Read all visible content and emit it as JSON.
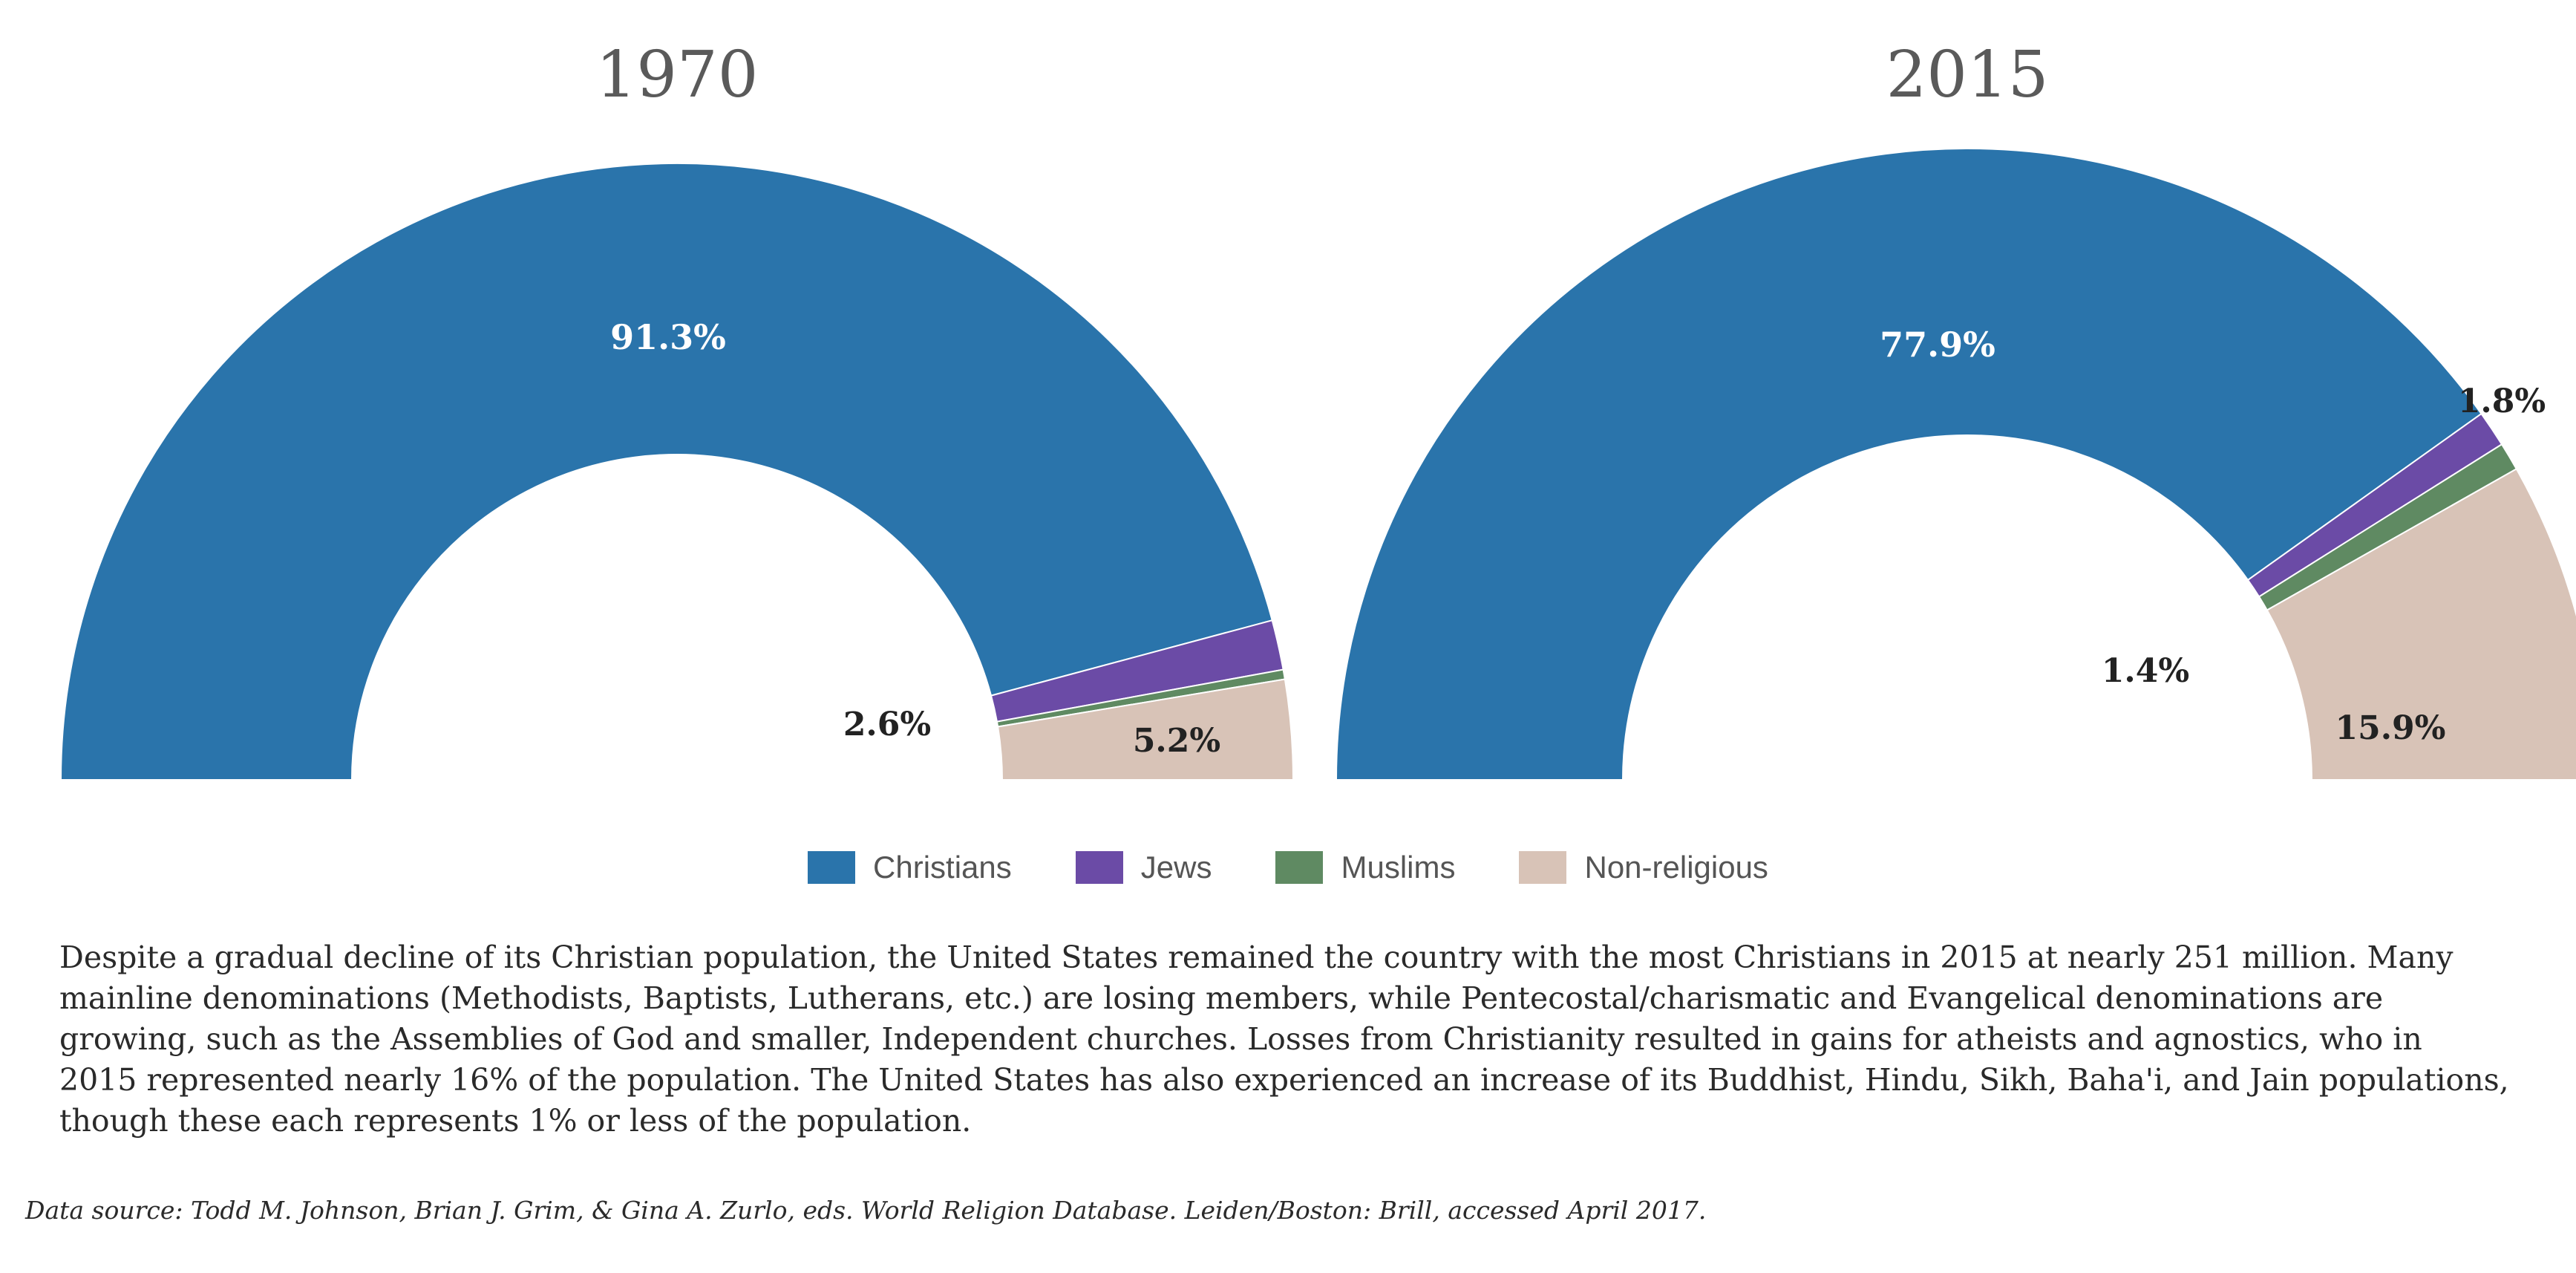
{
  "chart_data": [
    {
      "type": "pie",
      "variant": "half-donut",
      "title": "1970",
      "categories": [
        "Christians",
        "Jews",
        "Muslims",
        "Non-religious"
      ],
      "values": [
        91.3,
        2.6,
        0.5,
        5.2
      ],
      "labels": [
        "91.3%",
        "2.6%",
        "",
        "5.2%"
      ],
      "colors": [
        "#2a74ab",
        "#6b4ba6",
        "#5f8a62",
        "#d8c3b7"
      ]
    },
    {
      "type": "pie",
      "variant": "half-donut",
      "title": "2015",
      "categories": [
        "Christians",
        "Jews",
        "Muslims",
        "Non-religious"
      ],
      "values": [
        77.9,
        1.8,
        1.4,
        15.9
      ],
      "labels": [
        "77.9%",
        "1.8%",
        "1.4%",
        "15.9%"
      ],
      "colors": [
        "#2a74ab",
        "#6b4ba6",
        "#5f8a62",
        "#d8c3b7"
      ]
    }
  ],
  "legend": [
    {
      "label": "Christians",
      "color": "#2a74ab"
    },
    {
      "label": "Jews",
      "color": "#6b4ba6"
    },
    {
      "label": "Muslims",
      "color": "#5f8a62"
    },
    {
      "label": "Non-religious",
      "color": "#d8c3b7"
    }
  ],
  "description": "Despite a gradual decline of its Christian population, the United States remained the country with the most Christians in 2015 at nearly 251 million. Many mainline denominations (Methodists, Baptists, Lutherans, etc.) are losing members, while Pentecostal/charismatic and Evangelical denominations are growing, such as the Assemblies of God and smaller, Independent churches. Losses from Christianity resulted in gains for atheists and agnostics, who in 2015 represented nearly 16% of the population. The United States has also experienced an increase of its Buddhist, Hindu, Sikh, Baha'i, and Jain populations, though these each represents 1% or less of the population.",
  "source": "Data source: Todd M. Johnson, Brian J. Grim, & Gina A. Zurlo, eds. World Religion Database. Leiden/Boston: Brill, accessed April 2017."
}
